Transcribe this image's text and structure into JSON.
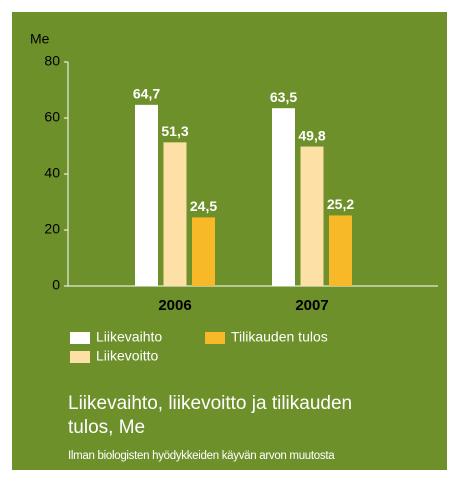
{
  "chart_data": {
    "type": "bar",
    "title": "Liikevaihto, liikevoitto ja tilikauden tulos, Me",
    "subtitle": "Ilman biologisten hyödykkeiden käyvän arvon muutosta",
    "y_label": "Me",
    "categories": [
      "2006",
      "2007"
    ],
    "series": [
      {
        "name": "Liikevaihto",
        "color": "#ffffff",
        "values": [
          64.7,
          63.5
        ],
        "value_labels": [
          "64,7",
          "63,5"
        ]
      },
      {
        "name": "Liikevoitto",
        "color": "#fde0a6",
        "values": [
          51.3,
          49.8
        ],
        "value_labels": [
          "51,3",
          "49,8"
        ]
      },
      {
        "name": "Tilikauden tulos",
        "color": "#f7b928",
        "values": [
          24.5,
          25.2
        ],
        "value_labels": [
          "24,5",
          "25,2"
        ]
      }
    ],
    "ylim": [
      0,
      80
    ],
    "yticks": [
      0,
      20,
      40,
      60,
      80
    ],
    "grid": false,
    "background": "#6e902b"
  }
}
